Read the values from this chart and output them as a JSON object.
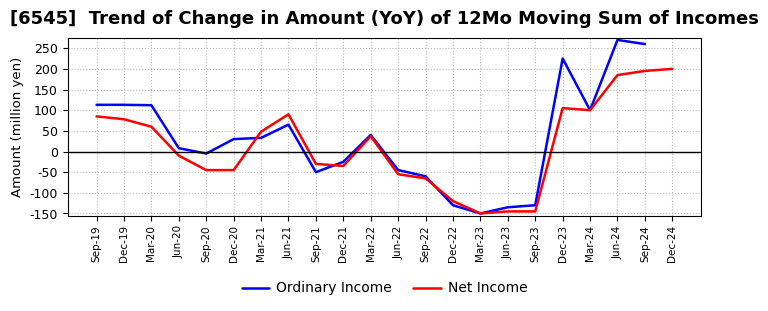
{
  "title": "[6545]  Trend of Change in Amount (YoY) of 12Mo Moving Sum of Incomes",
  "ylabel": "Amount (million yen)",
  "x_labels": [
    "Sep-19",
    "Dec-19",
    "Mar-20",
    "Jun-20",
    "Sep-20",
    "Dec-20",
    "Mar-21",
    "Jun-21",
    "Sep-21",
    "Dec-21",
    "Mar-22",
    "Jun-22",
    "Sep-22",
    "Dec-22",
    "Mar-23",
    "Jun-23",
    "Sep-23",
    "Dec-23",
    "Mar-24",
    "Jun-24",
    "Sep-24",
    "Dec-24"
  ],
  "ordinary_income": [
    113,
    113,
    112,
    8,
    -5,
    30,
    33,
    65,
    -50,
    -25,
    40,
    -45,
    -60,
    -130,
    -150,
    -135,
    -130,
    225,
    100,
    270,
    260,
    null
  ],
  "net_income": [
    85,
    78,
    60,
    -10,
    -45,
    -45,
    48,
    90,
    -30,
    -35,
    37,
    -55,
    -65,
    -120,
    -150,
    -145,
    -145,
    105,
    100,
    185,
    195,
    200
  ],
  "ylim": [
    -155,
    275
  ],
  "yticks": [
    -150,
    -100,
    -50,
    0,
    50,
    100,
    150,
    200,
    250
  ],
  "ordinary_color": "#0000ff",
  "net_color": "#ff0000",
  "line_width": 1.8,
  "title_fontsize": 13,
  "legend_labels": [
    "Ordinary Income",
    "Net Income"
  ],
  "bg_color": "#ffffff",
  "grid_color": "#bbbbbb"
}
